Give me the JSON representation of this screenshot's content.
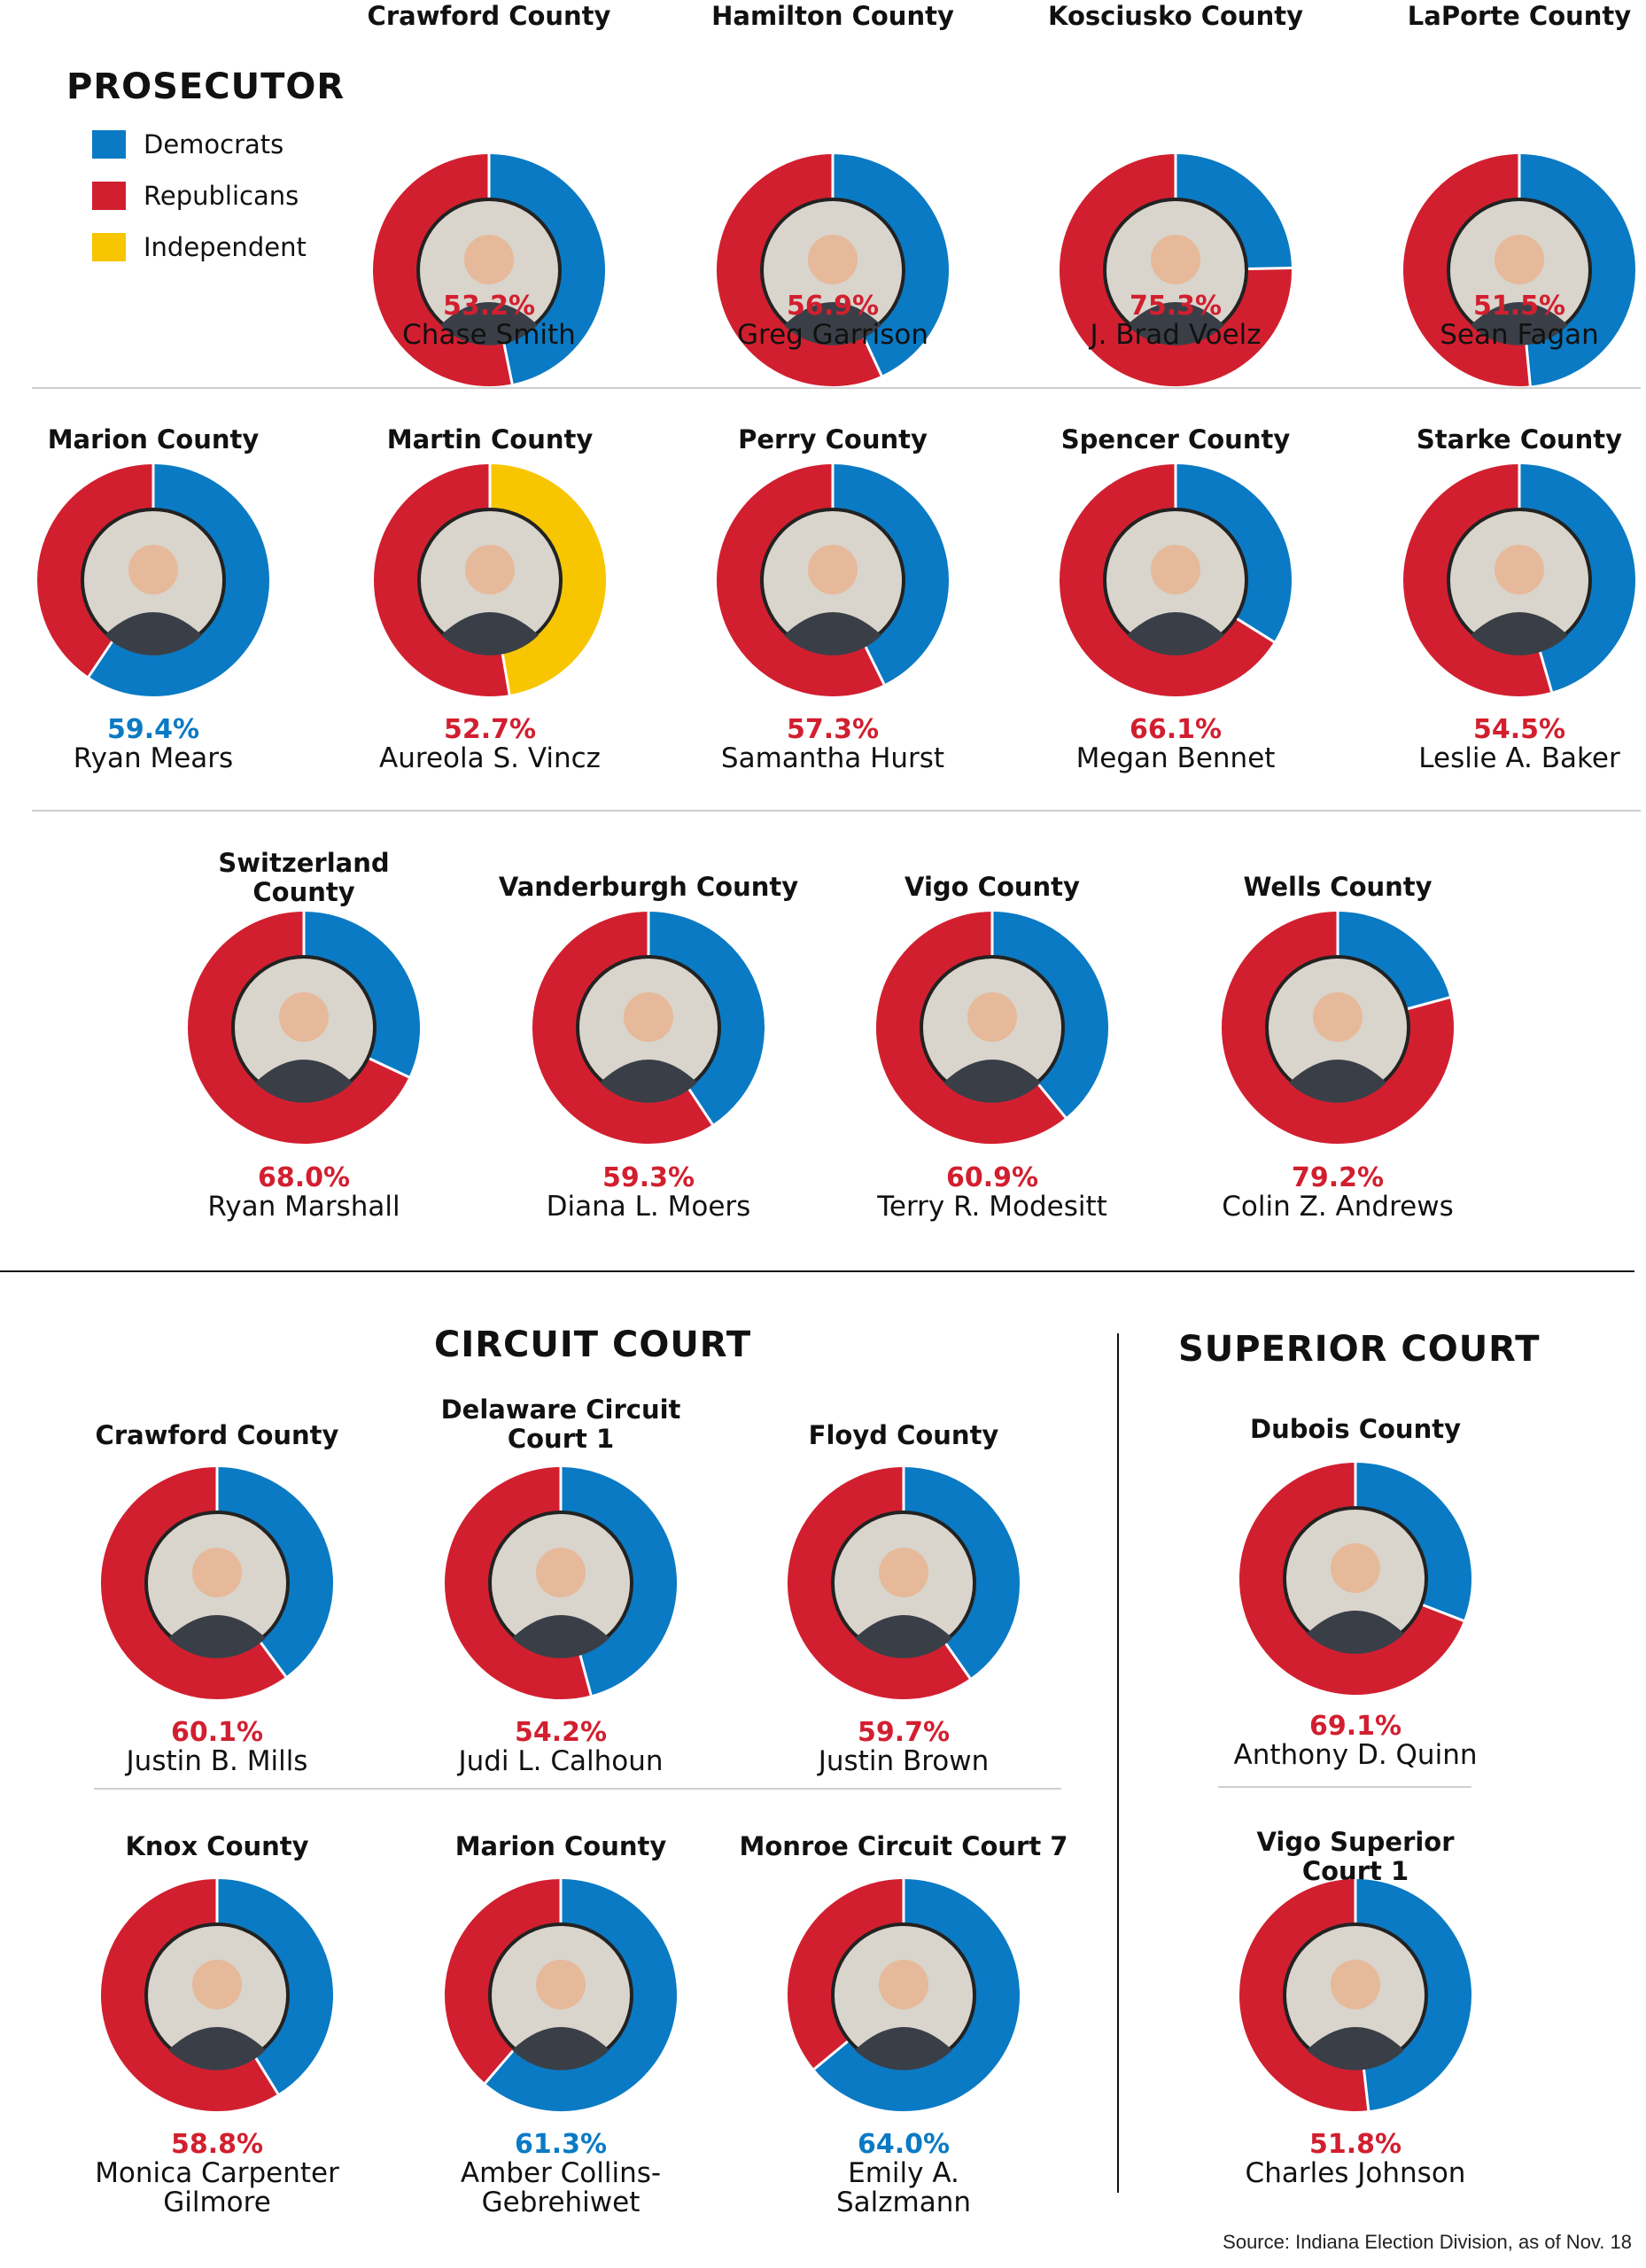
{
  "colors": {
    "democrat": "#0a7ac4",
    "republican": "#d21f2f",
    "independent": "#f7c600"
  },
  "sections": {
    "prosecutor": "PROSECUTOR",
    "circuit": "CIRCUIT COURT",
    "superior": "SUPERIOR COURT"
  },
  "legend": [
    {
      "label": "Democrats",
      "color": "#0a7ac4"
    },
    {
      "label": "Republicans",
      "color": "#d21f2f"
    },
    {
      "label": "Independent",
      "color": "#f7c600"
    }
  ],
  "source": "Source: Indiana Election Division, as of Nov. 18",
  "chart_data": [
    {
      "type": "pie",
      "title": "Crawford County",
      "winner": "Chase Smith",
      "winner_label": "53.2%",
      "winner_party": "Republicans",
      "slices": [
        {
          "party": "Democrats",
          "value": 46.8
        },
        {
          "party": "Republicans",
          "value": 53.2
        }
      ]
    },
    {
      "type": "pie",
      "title": "Hamilton County",
      "winner": "Greg Garrison",
      "winner_label": "56.9%",
      "winner_party": "Republicans",
      "slices": [
        {
          "party": "Democrats",
          "value": 43.1
        },
        {
          "party": "Republicans",
          "value": 56.9
        }
      ]
    },
    {
      "type": "pie",
      "title": "Kosciusko County",
      "winner": "J. Brad Voelz",
      "winner_label": "75.3%",
      "winner_party": "Republicans",
      "slices": [
        {
          "party": "Democrats",
          "value": 24.7
        },
        {
          "party": "Republicans",
          "value": 75.3
        }
      ]
    },
    {
      "type": "pie",
      "title": "LaPorte County",
      "winner": "Sean Fagan",
      "winner_label": "51.5%",
      "winner_party": "Republicans",
      "slices": [
        {
          "party": "Democrats",
          "value": 48.5
        },
        {
          "party": "Republicans",
          "value": 51.5
        }
      ]
    },
    {
      "type": "pie",
      "title": "Marion County",
      "winner": "Ryan Mears",
      "winner_label": "59.4%",
      "winner_party": "Democrats",
      "slices": [
        {
          "party": "Democrats",
          "value": 59.4
        },
        {
          "party": "Republicans",
          "value": 40.6
        }
      ]
    },
    {
      "type": "pie",
      "title": "Martin County",
      "winner": "Aureola S. Vincz",
      "winner_label": "52.7%",
      "winner_party": "Republicans",
      "slices": [
        {
          "party": "Independent",
          "value": 47.3
        },
        {
          "party": "Republicans",
          "value": 52.7
        }
      ]
    },
    {
      "type": "pie",
      "title": "Perry County",
      "winner": "Samantha Hurst",
      "winner_label": "57.3%",
      "winner_party": "Republicans",
      "slices": [
        {
          "party": "Democrats",
          "value": 42.7
        },
        {
          "party": "Republicans",
          "value": 57.3
        }
      ]
    },
    {
      "type": "pie",
      "title": "Spencer County",
      "winner": "Megan Bennet",
      "winner_label": "66.1%",
      "winner_party": "Republicans",
      "slices": [
        {
          "party": "Democrats",
          "value": 33.9
        },
        {
          "party": "Republicans",
          "value": 66.1
        }
      ]
    },
    {
      "type": "pie",
      "title": "Starke County",
      "winner": "Leslie A. Baker",
      "winner_label": "54.5%",
      "winner_party": "Republicans",
      "slices": [
        {
          "party": "Democrats",
          "value": 45.5
        },
        {
          "party": "Republicans",
          "value": 54.5
        }
      ]
    },
    {
      "type": "pie",
      "title": "Switzerland County",
      "winner": "Ryan Marshall",
      "winner_label": "68.0%",
      "winner_party": "Republicans",
      "slices": [
        {
          "party": "Democrats",
          "value": 32.0
        },
        {
          "party": "Republicans",
          "value": 68.0
        }
      ]
    },
    {
      "type": "pie",
      "title": "Vanderburgh County",
      "winner": "Diana L. Moers",
      "winner_label": "59.3%",
      "winner_party": "Republicans",
      "slices": [
        {
          "party": "Democrats",
          "value": 40.7
        },
        {
          "party": "Republicans",
          "value": 59.3
        }
      ]
    },
    {
      "type": "pie",
      "title": "Vigo County",
      "winner": "Terry R. Modesitt",
      "winner_label": "60.9%",
      "winner_party": "Republicans",
      "slices": [
        {
          "party": "Democrats",
          "value": 39.1
        },
        {
          "party": "Republicans",
          "value": 60.9
        }
      ]
    },
    {
      "type": "pie",
      "title": "Wells County",
      "winner": "Colin Z. Andrews",
      "winner_label": "79.2%",
      "winner_party": "Republicans",
      "slices": [
        {
          "party": "Democrats",
          "value": 20.8
        },
        {
          "party": "Republicans",
          "value": 79.2
        }
      ]
    },
    {
      "type": "pie",
      "title": "Crawford County",
      "winner": "Justin B. Mills",
      "winner_label": "60.1%",
      "winner_party": "Republicans",
      "slices": [
        {
          "party": "Democrats",
          "value": 39.9
        },
        {
          "party": "Republicans",
          "value": 60.1
        }
      ]
    },
    {
      "type": "pie",
      "title": "Delaware Circuit Court 1",
      "winner": "Judi L. Calhoun",
      "winner_label": "54.2%",
      "winner_party": "Republicans",
      "slices": [
        {
          "party": "Democrats",
          "value": 45.8
        },
        {
          "party": "Republicans",
          "value": 54.2
        }
      ]
    },
    {
      "type": "pie",
      "title": "Floyd County",
      "winner": "Justin Brown",
      "winner_label": "59.7%",
      "winner_party": "Republicans",
      "slices": [
        {
          "party": "Democrats",
          "value": 40.3
        },
        {
          "party": "Republicans",
          "value": 59.7
        }
      ]
    },
    {
      "type": "pie",
      "title": "Knox County",
      "winner": "Monica Carpenter Gilmore",
      "winner_label": "58.8%",
      "winner_party": "Republicans",
      "slices": [
        {
          "party": "Democrats",
          "value": 41.2
        },
        {
          "party": "Republicans",
          "value": 58.8
        }
      ]
    },
    {
      "type": "pie",
      "title": "Marion County",
      "winner": "Amber Collins-Gebrehiwet",
      "winner_label": "61.3%",
      "winner_party": "Democrats",
      "slices": [
        {
          "party": "Democrats",
          "value": 61.3
        },
        {
          "party": "Republicans",
          "value": 38.7
        }
      ]
    },
    {
      "type": "pie",
      "title": "Monroe Circuit Court 7",
      "winner": "Emily A. Salzmann",
      "winner_label": "64.0%",
      "winner_party": "Democrats",
      "slices": [
        {
          "party": "Democrats",
          "value": 64.0
        },
        {
          "party": "Republicans",
          "value": 36.0
        }
      ]
    },
    {
      "type": "pie",
      "title": "Dubois County",
      "winner": "Anthony D. Quinn",
      "winner_label": "69.1%",
      "winner_party": "Republicans",
      "slices": [
        {
          "party": "Democrats",
          "value": 30.9
        },
        {
          "party": "Republicans",
          "value": 69.1
        }
      ]
    },
    {
      "type": "pie",
      "title": "Vigo Superior Court 1",
      "winner": "Charles Johnson",
      "winner_label": "51.8%",
      "winner_party": "Republicans",
      "slices": [
        {
          "party": "Democrats",
          "value": 48.2
        },
        {
          "party": "Republicans",
          "value": 51.8
        }
      ]
    }
  ]
}
